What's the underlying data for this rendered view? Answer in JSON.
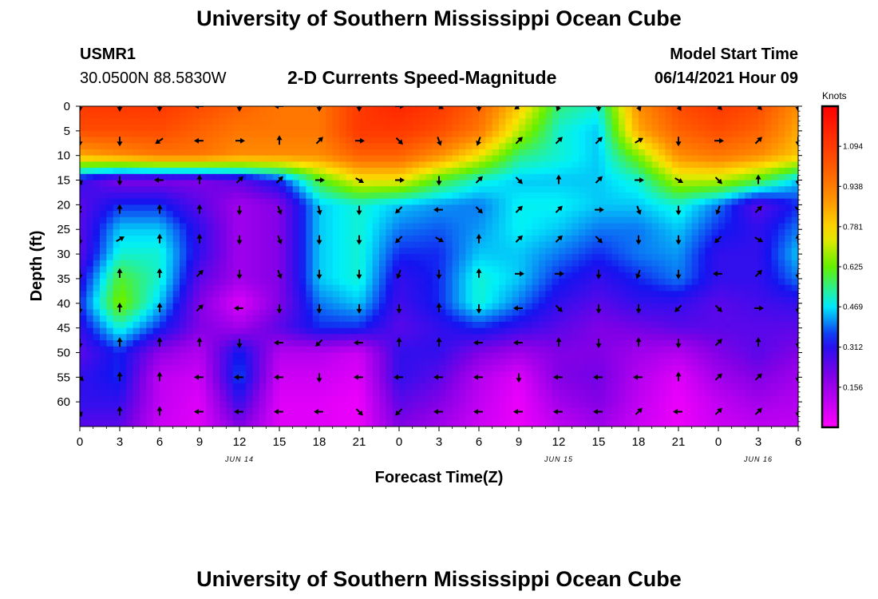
{
  "header": {
    "title": "University of Southern Mississippi Ocean Cube",
    "station_id": "USMR1",
    "coords": "30.0500N  88.5830W",
    "subtitle": "2-D Currents Speed-Magnitude",
    "model_label": "Model Start Time",
    "model_time": "06/14/2021 Hour 09"
  },
  "footer": {
    "title": "University of Southern Mississippi Ocean Cube"
  },
  "chart_data": {
    "type": "heatmap",
    "title": "2-D Currents Speed-Magnitude",
    "xlabel": "Forecast Time(Z)",
    "ylabel": "Depth (ft)",
    "x_ticks": [
      "0",
      "3",
      "6",
      "9",
      "12",
      "15",
      "18",
      "21",
      "0",
      "3",
      "6",
      "9",
      "12",
      "15",
      "18",
      "21",
      "0",
      "3",
      "6"
    ],
    "x_range_hours": [
      0,
      54
    ],
    "day_labels": [
      {
        "label": "JUN 14",
        "hour": 12
      },
      {
        "label": "JUN 15",
        "hour": 36
      },
      {
        "label": "JUN 16",
        "hour": 51
      }
    ],
    "y_ticks": [
      0,
      5,
      10,
      15,
      20,
      25,
      30,
      35,
      40,
      45,
      50,
      55,
      60
    ],
    "ylim": [
      0,
      65
    ],
    "colorbar": {
      "label": "Knots",
      "range": [
        0,
        1.25
      ],
      "ticks": [
        "1.094",
        "0.938",
        "0.781",
        "0.625",
        "0.469",
        "0.312",
        "0.156"
      ]
    },
    "speed_hours": [
      0,
      3,
      6,
      9,
      12,
      15,
      18,
      21,
      24,
      27,
      30,
      33,
      36,
      39,
      42,
      45,
      48,
      51,
      54
    ],
    "speed_depths": [
      0,
      5,
      10,
      15,
      20,
      25,
      30,
      35,
      40,
      45,
      50,
      55,
      60,
      65
    ],
    "speed_knots": [
      [
        1.1,
        1.1,
        1.1,
        1.05,
        1.0,
        0.95,
        0.95,
        1.1,
        1.15,
        1.1,
        1.0,
        0.8,
        0.55,
        0.5,
        0.9,
        1.05,
        1.1,
        1.05,
        0.9
      ],
      [
        1.05,
        1.05,
        1.05,
        1.0,
        0.95,
        0.95,
        0.95,
        1.1,
        1.1,
        1.05,
        0.95,
        0.7,
        0.5,
        0.45,
        0.85,
        1.0,
        1.05,
        1.0,
        0.85
      ],
      [
        0.85,
        0.9,
        0.95,
        0.95,
        0.9,
        0.9,
        0.9,
        1.0,
        1.0,
        0.9,
        0.75,
        0.55,
        0.5,
        0.45,
        0.65,
        0.9,
        0.95,
        0.9,
        0.8
      ],
      [
        0.3,
        0.2,
        0.2,
        0.2,
        0.25,
        0.35,
        0.6,
        0.75,
        0.75,
        0.6,
        0.5,
        0.45,
        0.45,
        0.45,
        0.5,
        0.7,
        0.7,
        0.6,
        0.45
      ],
      [
        0.25,
        0.35,
        0.35,
        0.25,
        0.15,
        0.2,
        0.45,
        0.5,
        0.45,
        0.42,
        0.4,
        0.48,
        0.48,
        0.45,
        0.45,
        0.5,
        0.4,
        0.25,
        0.35
      ],
      [
        0.25,
        0.45,
        0.45,
        0.3,
        0.15,
        0.2,
        0.45,
        0.5,
        0.4,
        0.38,
        0.42,
        0.48,
        0.45,
        0.4,
        0.4,
        0.45,
        0.35,
        0.3,
        0.4
      ],
      [
        0.25,
        0.5,
        0.5,
        0.3,
        0.15,
        0.2,
        0.45,
        0.5,
        0.35,
        0.35,
        0.45,
        0.45,
        0.4,
        0.35,
        0.4,
        0.42,
        0.3,
        0.3,
        0.45
      ],
      [
        0.3,
        0.6,
        0.5,
        0.25,
        0.15,
        0.2,
        0.45,
        0.5,
        0.3,
        0.35,
        0.5,
        0.45,
        0.35,
        0.3,
        0.35,
        0.4,
        0.3,
        0.3,
        0.4
      ],
      [
        0.35,
        0.65,
        0.45,
        0.2,
        0.05,
        0.2,
        0.4,
        0.45,
        0.28,
        0.35,
        0.5,
        0.4,
        0.3,
        0.25,
        0.3,
        0.3,
        0.25,
        0.28,
        0.3
      ],
      [
        0.3,
        0.5,
        0.35,
        0.2,
        0.15,
        0.25,
        0.35,
        0.35,
        0.25,
        0.3,
        0.35,
        0.3,
        0.25,
        0.2,
        0.22,
        0.25,
        0.25,
        0.25,
        0.25
      ],
      [
        0.25,
        0.35,
        0.18,
        0.12,
        0.35,
        0.12,
        0.12,
        0.08,
        0.3,
        0.3,
        0.2,
        0.15,
        0.2,
        0.2,
        0.15,
        0.12,
        0.2,
        0.25,
        0.2
      ],
      [
        0.3,
        0.35,
        0.1,
        0.08,
        0.38,
        0.08,
        0.08,
        0.05,
        0.3,
        0.25,
        0.12,
        0.05,
        0.2,
        0.22,
        0.12,
        0.05,
        0.15,
        0.2,
        0.15
      ],
      [
        0.3,
        0.3,
        0.1,
        0.05,
        0.3,
        0.05,
        0.05,
        0.03,
        0.25,
        0.2,
        0.1,
        0.03,
        0.15,
        0.2,
        0.1,
        0.03,
        0.1,
        0.15,
        0.12
      ],
      [
        0.25,
        0.25,
        0.08,
        0.05,
        0.2,
        0.05,
        0.05,
        0.03,
        0.2,
        0.15,
        0.08,
        0.03,
        0.1,
        0.15,
        0.08,
        0.03,
        0.08,
        0.1,
        0.1
      ]
    ],
    "arrow_hours": [
      0,
      3,
      6,
      9,
      12,
      15,
      18,
      21,
      24,
      27,
      30,
      33,
      36,
      39,
      42,
      45,
      48,
      51,
      54
    ],
    "arrow_depths": [
      0,
      7,
      15,
      21,
      27,
      34,
      41,
      48,
      55,
      62
    ],
    "arrow_direction_deg": [
      [
        180,
        180,
        180,
        270,
        180,
        270,
        180,
        180,
        90,
        120,
        180,
        235,
        200,
        180,
        160,
        150,
        135,
        135,
        180
      ],
      [
        180,
        180,
        235,
        270,
        90,
        0,
        45,
        90,
        135,
        160,
        200,
        45,
        45,
        45,
        60,
        180,
        90,
        45,
        180
      ],
      [
        160,
        180,
        270,
        0,
        45,
        45,
        90,
        120,
        90,
        180,
        45,
        135,
        0,
        45,
        90,
        120,
        135,
        0,
        180
      ],
      [
        200,
        0,
        0,
        0,
        180,
        160,
        170,
        180,
        225,
        270,
        135,
        45,
        45,
        90,
        160,
        180,
        200,
        45,
        135
      ],
      [
        180,
        60,
        0,
        0,
        180,
        160,
        180,
        180,
        225,
        120,
        0,
        45,
        45,
        135,
        180,
        180,
        225,
        120,
        0
      ],
      [
        180,
        0,
        0,
        45,
        180,
        160,
        180,
        180,
        200,
        180,
        0,
        90,
        90,
        180,
        200,
        180,
        270,
        45,
        180
      ],
      [
        180,
        0,
        0,
        45,
        270,
        180,
        180,
        180,
        180,
        0,
        180,
        270,
        135,
        180,
        180,
        225,
        135,
        90,
        180
      ],
      [
        180,
        0,
        0,
        0,
        180,
        270,
        225,
        270,
        0,
        0,
        270,
        270,
        0,
        180,
        0,
        180,
        45,
        0,
        180
      ],
      [
        135,
        0,
        0,
        270,
        270,
        270,
        180,
        270,
        270,
        270,
        270,
        180,
        270,
        270,
        270,
        0,
        45,
        45,
        180
      ],
      [
        160,
        0,
        0,
        270,
        270,
        270,
        270,
        135,
        225,
        270,
        270,
        270,
        270,
        270,
        45,
        270,
        45,
        45,
        180
      ]
    ]
  }
}
